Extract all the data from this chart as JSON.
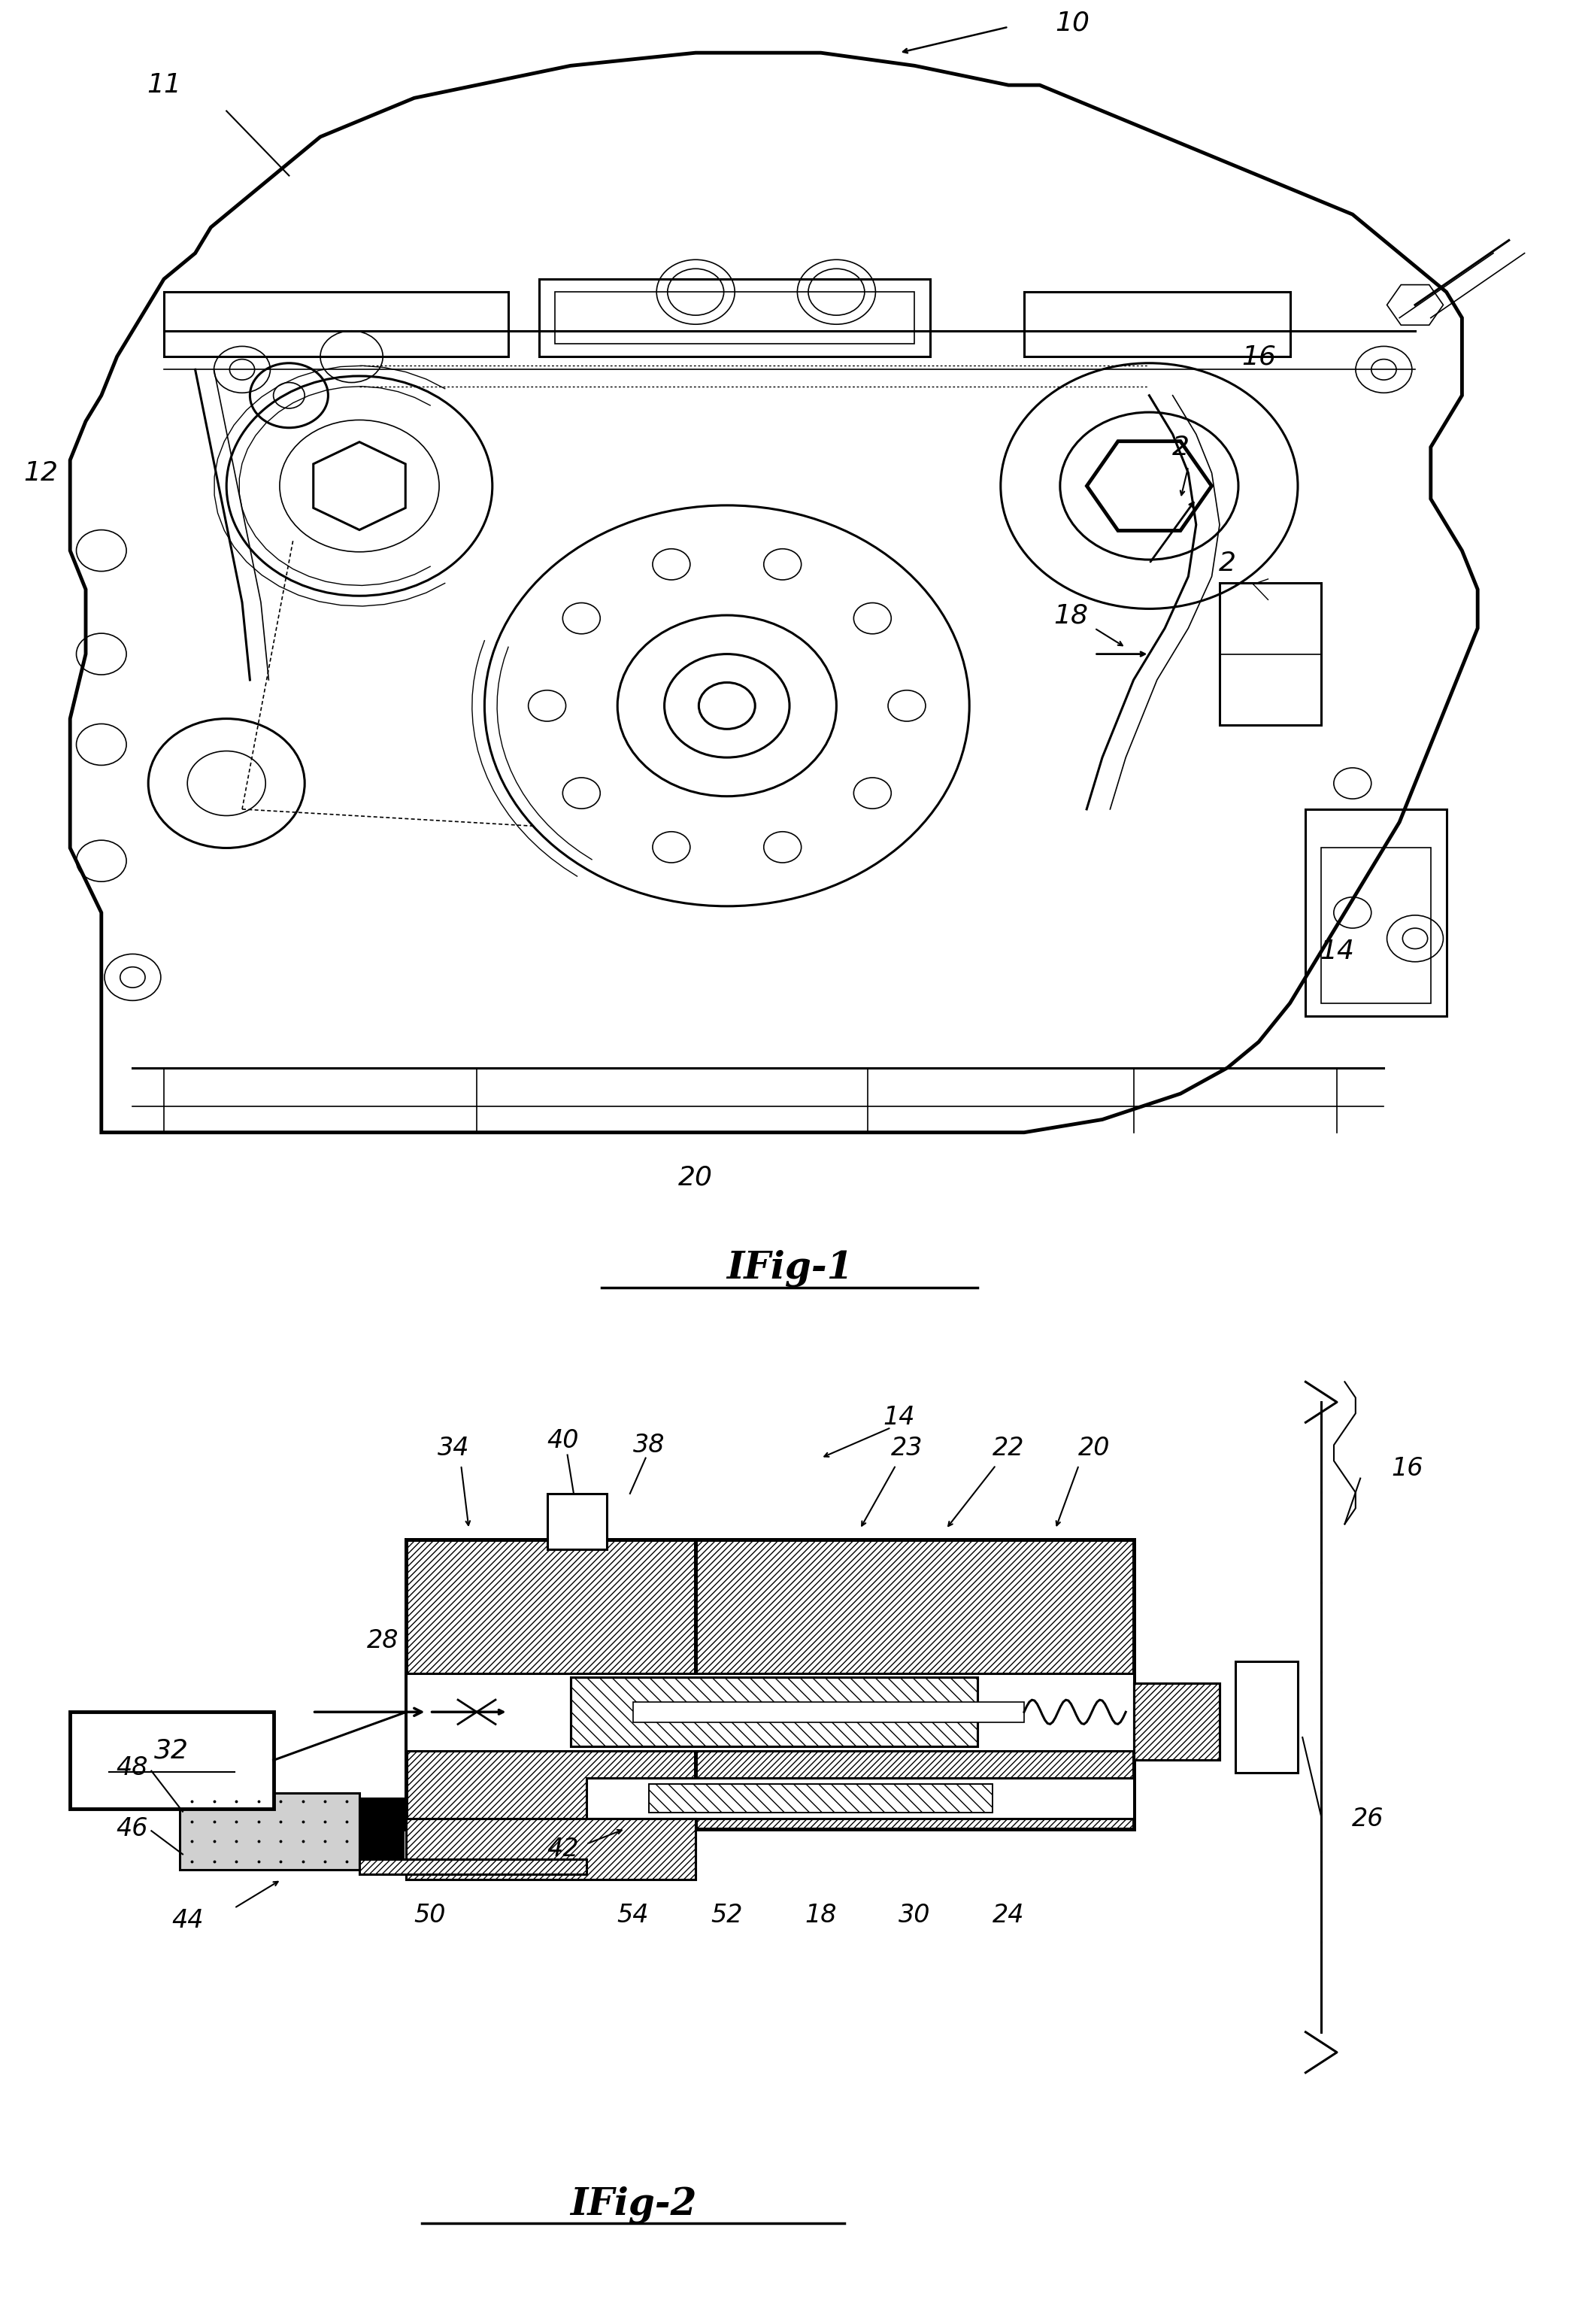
{
  "background_color": "#ffffff",
  "line_color": "#000000",
  "fig1_label": "IFig-1",
  "fig2_label": "IFig-2",
  "title_fontsize": 36,
  "number_fontsize": 24,
  "fig1_annotation_fontsize": 26
}
